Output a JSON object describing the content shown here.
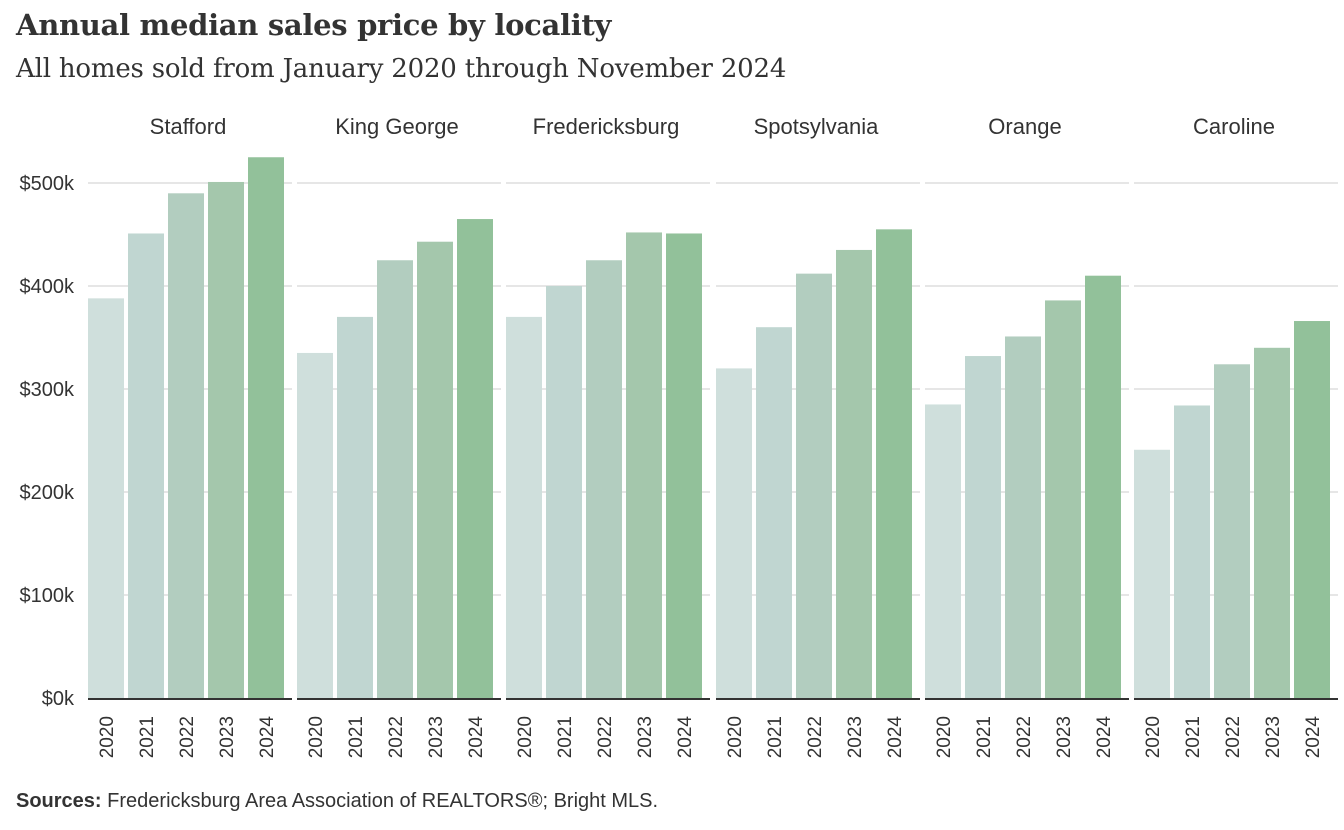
{
  "header": {
    "title": "Annual median sales price by locality",
    "subtitle": "All homes sold from January 2020 through November 2024"
  },
  "footer": {
    "sources_label": "Sources:",
    "sources_text": "Fredericksburg  Area Association of REALTORS®;  Bright MLS."
  },
  "colors": {
    "years": [
      "#cfdfdc",
      "#c0d6d1",
      "#b2cdbf",
      "#a4c7ac",
      "#92c19a"
    ],
    "grid": "#cccccc",
    "baseline": "#333333",
    "text": "#333333"
  },
  "chart_data": {
    "type": "bar",
    "facet_by": "locality",
    "categories": [
      "2020",
      "2021",
      "2022",
      "2023",
      "2024"
    ],
    "yticks": [
      "$0k",
      "$100k",
      "$200k",
      "$300k",
      "$400k",
      "$500k"
    ],
    "ylim": [
      0,
      525000
    ],
    "grid": true,
    "panels": [
      {
        "name": "Stafford",
        "values": [
          388000,
          451000,
          490000,
          501000,
          525000
        ]
      },
      {
        "name": "King George",
        "values": [
          335000,
          370000,
          425000,
          443000,
          465000
        ]
      },
      {
        "name": "Fredericksburg",
        "values": [
          370000,
          400000,
          425000,
          452000,
          451000
        ]
      },
      {
        "name": "Spotsylvania",
        "values": [
          320000,
          360000,
          412000,
          435000,
          455000
        ]
      },
      {
        "name": "Orange",
        "values": [
          285000,
          332000,
          351000,
          386000,
          410000
        ]
      },
      {
        "name": "Caroline",
        "values": [
          241000,
          284000,
          324000,
          340000,
          366000
        ]
      }
    ]
  }
}
